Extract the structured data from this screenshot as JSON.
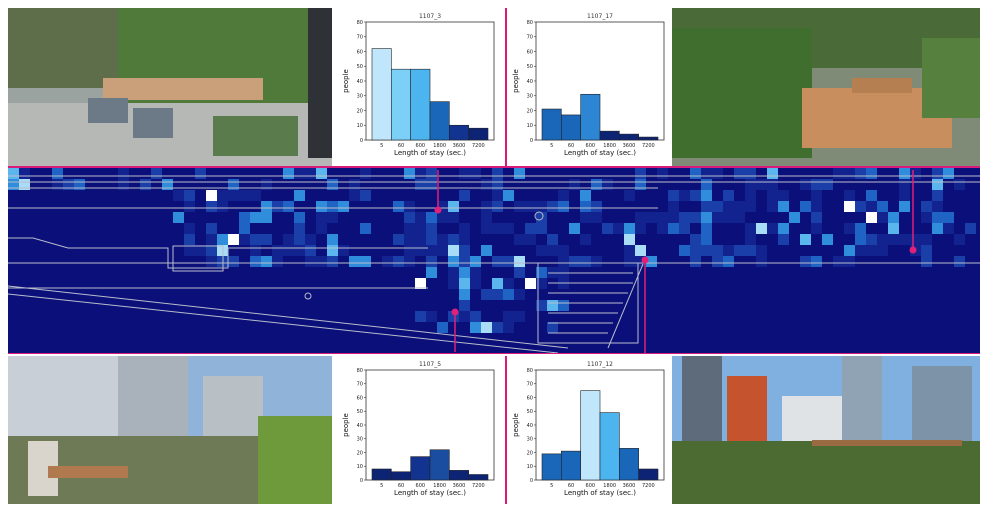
{
  "colors": {
    "marker": "#e0207a",
    "heat_bg": "#0a0f7a"
  },
  "chart_data": [
    {
      "type": "bar",
      "title": "1107_3",
      "categories": [
        "5",
        "60",
        "600",
        "1800",
        "3600",
        "7200"
      ],
      "values": [
        62,
        48,
        48,
        26,
        10,
        8
      ],
      "bar_colors": [
        "#bfe6fb",
        "#7cd0f7",
        "#4cb4ef",
        "#1a66b8",
        "#12338f",
        "#0d2474"
      ],
      "xlabel": "Length of stay (sec.)",
      "ylabel": "people",
      "yticks": [
        "0",
        "10",
        "20",
        "30",
        "40",
        "50",
        "60",
        "70",
        "80"
      ],
      "ylim": [
        0,
        80
      ]
    },
    {
      "type": "bar",
      "title": "1107_17",
      "categories": [
        "5",
        "60",
        "600",
        "1800",
        "3600",
        "7200"
      ],
      "values": [
        21,
        17,
        31,
        6,
        4,
        2
      ],
      "bar_colors": [
        "#1a66b8",
        "#1a66b8",
        "#2d86d3",
        "#0d2474",
        "#0d2474",
        "#0d2474"
      ],
      "xlabel": "Length of stay (sec.)",
      "ylabel": "people",
      "yticks": [
        "0",
        "10",
        "20",
        "30",
        "40",
        "50",
        "60",
        "70",
        "80"
      ],
      "ylim": [
        0,
        80
      ]
    },
    {
      "type": "bar",
      "title": "1107_5",
      "categories": [
        "5",
        "60",
        "600",
        "1800",
        "3600",
        "7200"
      ],
      "values": [
        8,
        6,
        17,
        22,
        7,
        4
      ],
      "bar_colors": [
        "#0d2474",
        "#0d2474",
        "#12338f",
        "#1a4da0",
        "#0d2474",
        "#0d2474"
      ],
      "xlabel": "Length of stay (sec.)",
      "ylabel": "people",
      "yticks": [
        "0",
        "10",
        "20",
        "30",
        "40",
        "50",
        "60",
        "70",
        "80"
      ],
      "ylim": [
        0,
        80
      ]
    },
    {
      "type": "bar",
      "title": "1107_12",
      "categories": [
        "5",
        "60",
        "600",
        "1800",
        "3600",
        "7200"
      ],
      "values": [
        19,
        21,
        65,
        49,
        23,
        8
      ],
      "bar_colors": [
        "#1a66b8",
        "#1a66b8",
        "#bfe6fb",
        "#4cb4ef",
        "#1a66b8",
        "#0d2474"
      ],
      "xlabel": "Length of stay (sec.)",
      "ylabel": "people",
      "yticks": [
        "0",
        "10",
        "20",
        "30",
        "40",
        "50",
        "60",
        "70",
        "80"
      ],
      "ylim": [
        0,
        80
      ]
    }
  ]
}
